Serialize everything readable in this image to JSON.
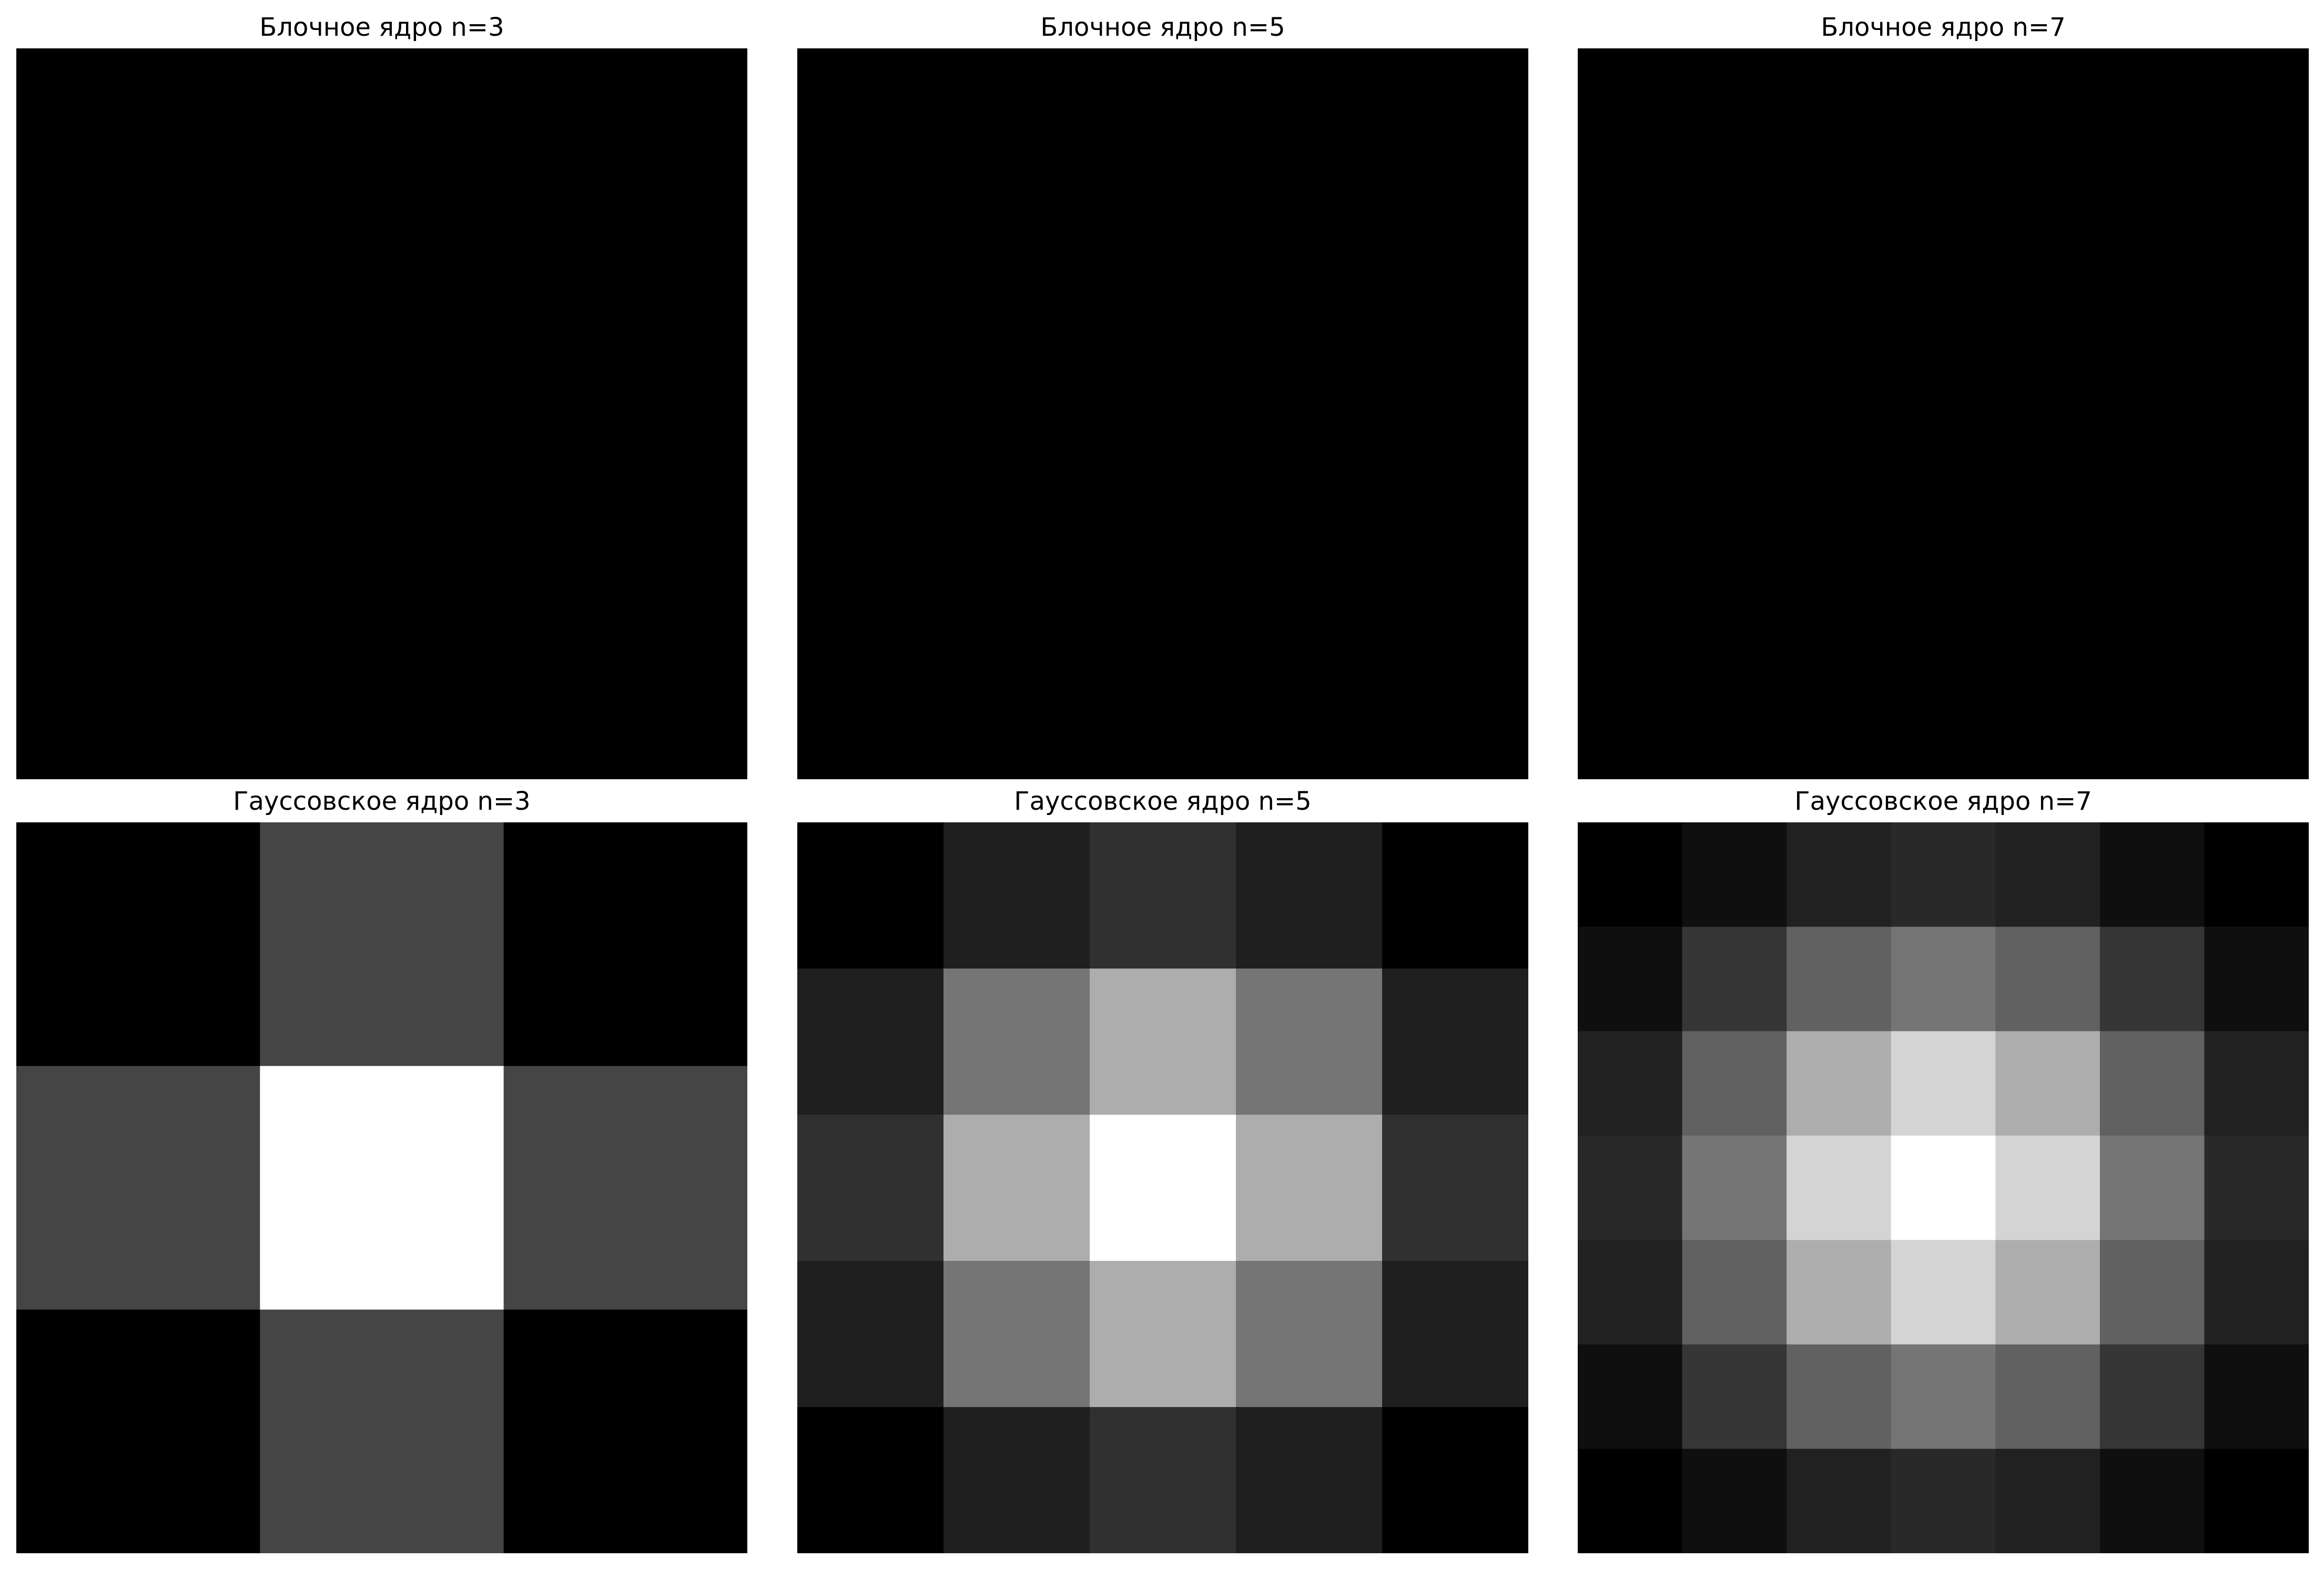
{
  "chart_data": [
    {
      "type": "heatmap",
      "title": "Блочное ядро n=3",
      "colormap": "gray",
      "size": 3,
      "values": [
        [
          0.1111,
          0.1111,
          0.1111
        ],
        [
          0.1111,
          0.1111,
          0.1111
        ],
        [
          0.1111,
          0.1111,
          0.1111
        ]
      ]
    },
    {
      "type": "heatmap",
      "title": "Блочное ядро n=5",
      "colormap": "gray",
      "size": 5,
      "values": [
        [
          0.04,
          0.04,
          0.04,
          0.04,
          0.04
        ],
        [
          0.04,
          0.04,
          0.04,
          0.04,
          0.04
        ],
        [
          0.04,
          0.04,
          0.04,
          0.04,
          0.04
        ],
        [
          0.04,
          0.04,
          0.04,
          0.04,
          0.04
        ],
        [
          0.04,
          0.04,
          0.04,
          0.04,
          0.04
        ]
      ]
    },
    {
      "type": "heatmap",
      "title": "Блочное ядро n=7",
      "colormap": "gray",
      "size": 7,
      "values": [
        [
          0.0204,
          0.0204,
          0.0204,
          0.0204,
          0.0204,
          0.0204,
          0.0204
        ],
        [
          0.0204,
          0.0204,
          0.0204,
          0.0204,
          0.0204,
          0.0204,
          0.0204
        ],
        [
          0.0204,
          0.0204,
          0.0204,
          0.0204,
          0.0204,
          0.0204,
          0.0204
        ],
        [
          0.0204,
          0.0204,
          0.0204,
          0.0204,
          0.0204,
          0.0204,
          0.0204
        ],
        [
          0.0204,
          0.0204,
          0.0204,
          0.0204,
          0.0204,
          0.0204,
          0.0204
        ],
        [
          0.0204,
          0.0204,
          0.0204,
          0.0204,
          0.0204,
          0.0204,
          0.0204
        ],
        [
          0.0204,
          0.0204,
          0.0204,
          0.0204,
          0.0204,
          0.0204,
          0.0204
        ]
      ]
    },
    {
      "type": "heatmap",
      "title": "Гауссовское ядро n=3",
      "colormap": "gray",
      "size": 3,
      "values": [
        [
          0.0,
          0.27,
          0.0
        ],
        [
          0.27,
          1.0,
          0.27
        ],
        [
          0.0,
          0.27,
          0.0
        ]
      ]
    },
    {
      "type": "heatmap",
      "title": "Гауссовское ядро n=5",
      "colormap": "gray",
      "size": 5,
      "values": [
        [
          0.0,
          0.12,
          0.19,
          0.12,
          0.0
        ],
        [
          0.12,
          0.46,
          0.68,
          0.46,
          0.12
        ],
        [
          0.19,
          0.68,
          1.0,
          0.68,
          0.19
        ],
        [
          0.12,
          0.46,
          0.68,
          0.46,
          0.12
        ],
        [
          0.0,
          0.12,
          0.19,
          0.12,
          0.0
        ]
      ]
    },
    {
      "type": "heatmap",
      "title": "Гауссовское ядро n=7",
      "colormap": "gray",
      "size": 7,
      "values": [
        [
          0.0,
          0.06,
          0.13,
          0.16,
          0.13,
          0.06,
          0.0
        ],
        [
          0.06,
          0.21,
          0.38,
          0.46,
          0.38,
          0.21,
          0.06
        ],
        [
          0.13,
          0.38,
          0.68,
          0.83,
          0.68,
          0.38,
          0.13
        ],
        [
          0.16,
          0.46,
          0.83,
          1.0,
          0.83,
          0.46,
          0.16
        ],
        [
          0.13,
          0.38,
          0.68,
          0.83,
          0.68,
          0.38,
          0.13
        ],
        [
          0.06,
          0.21,
          0.38,
          0.46,
          0.38,
          0.21,
          0.06
        ],
        [
          0.0,
          0.06,
          0.13,
          0.16,
          0.13,
          0.06,
          0.0
        ]
      ]
    }
  ]
}
